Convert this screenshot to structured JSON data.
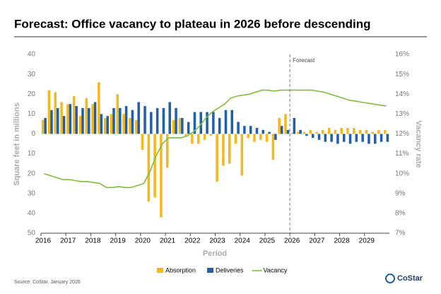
{
  "chart_data": {
    "type": "bar_line",
    "title": "Forecast: Office vacancy to plateau in 2026 before descending",
    "xlabel": "Period",
    "ylabel": "Square feet in millions",
    "y2label": "Vacancy rate",
    "source": "Source: CoStar, January 2026",
    "logo": "CoStar",
    "annotation": {
      "text": "Forecast",
      "at": "2026"
    },
    "legend": "bottom",
    "categories": [
      "2016",
      null,
      null,
      null,
      "2017",
      null,
      null,
      null,
      "2018",
      null,
      null,
      null,
      "2019",
      null,
      null,
      null,
      "2020",
      null,
      null,
      null,
      "2021",
      null,
      null,
      null,
      "2022",
      null,
      null,
      null,
      "2023",
      null,
      null,
      null,
      "2024",
      null,
      null,
      null,
      "2025",
      null,
      null,
      null,
      "2026",
      null,
      null,
      null,
      "2027",
      null,
      null,
      null,
      "2028",
      null,
      null,
      null,
      "2029",
      null,
      null,
      null
    ],
    "ylim": [
      -50,
      40
    ],
    "yticks": [
      40,
      30,
      20,
      10,
      0,
      {
        "value": -10,
        "label": "10"
      },
      {
        "value": -20,
        "label": "20"
      },
      {
        "value": -30,
        "label": "30"
      },
      {
        "value": -40,
        "label": "40"
      },
      {
        "value": -50,
        "label": "50"
      }
    ],
    "y2lim": [
      7,
      16
    ],
    "y2ticks": [
      {
        "value": 16,
        "label": "16%"
      },
      {
        "value": 15,
        "label": "15%"
      },
      {
        "value": 14,
        "label": "14%"
      },
      {
        "value": 13,
        "label": "13%"
      },
      {
        "value": 12,
        "label": "12%"
      },
      {
        "value": 11,
        "label": "11%"
      },
      {
        "value": 10,
        "label": "10%"
      },
      {
        "value": 9,
        "label": "9%"
      },
      {
        "value": 8,
        "label": "8%"
      },
      {
        "value": 7,
        "label": "7%"
      }
    ],
    "series": [
      {
        "name": "Absorption",
        "kind": "bar",
        "color": "#f5b81c",
        "values": [
          7,
          22,
          21,
          16,
          15,
          19,
          9,
          18,
          15,
          26,
          8,
          10,
          20,
          10,
          8,
          7,
          -8,
          -34,
          -32,
          -42,
          -17,
          7,
          8,
          -1,
          -5,
          -5,
          -3,
          -1,
          -24,
          -16,
          -15,
          -5,
          -21,
          -2,
          -4,
          -3,
          -4,
          -13,
          8,
          10,
          0.5,
          1,
          1,
          2,
          1,
          2,
          3,
          2,
          3,
          3,
          3,
          2,
          2,
          1,
          2,
          2
        ]
      },
      {
        "name": "Deliveries",
        "kind": "bar",
        "color": "#1f5fad",
        "values": [
          8,
          12,
          13,
          9,
          15,
          14,
          13,
          13,
          16,
          10,
          9,
          13,
          13,
          14,
          12,
          16,
          14,
          11,
          13,
          13,
          16,
          13,
          8,
          6,
          11,
          11,
          11,
          11,
          8,
          12,
          12,
          6,
          4,
          4,
          3,
          2,
          1,
          -3,
          4,
          2,
          8,
          2,
          -1,
          -2,
          -3,
          -4,
          -4,
          -5,
          -4,
          -5,
          -4,
          -4,
          -5,
          -5,
          -4,
          -4
        ]
      },
      {
        "name": "Vacancy",
        "kind": "line",
        "axis": "y2",
        "color": "#7cbf3a",
        "values": [
          10.0,
          9.9,
          9.8,
          9.7,
          9.7,
          9.65,
          9.6,
          9.6,
          9.55,
          9.5,
          9.3,
          9.3,
          9.35,
          9.3,
          9.3,
          9.4,
          9.5,
          10.1,
          10.9,
          11.5,
          11.8,
          11.8,
          11.8,
          11.9,
          12.1,
          12.4,
          12.8,
          13.1,
          13.3,
          13.5,
          13.8,
          13.9,
          13.95,
          14.0,
          14.1,
          14.2,
          14.2,
          14.15,
          14.2,
          14.2,
          14.2,
          14.2,
          14.2,
          14.2,
          14.15,
          14.1,
          14.0,
          13.9,
          13.8,
          13.7,
          13.65,
          13.6,
          13.55,
          13.5,
          13.45,
          13.4
        ]
      }
    ]
  }
}
